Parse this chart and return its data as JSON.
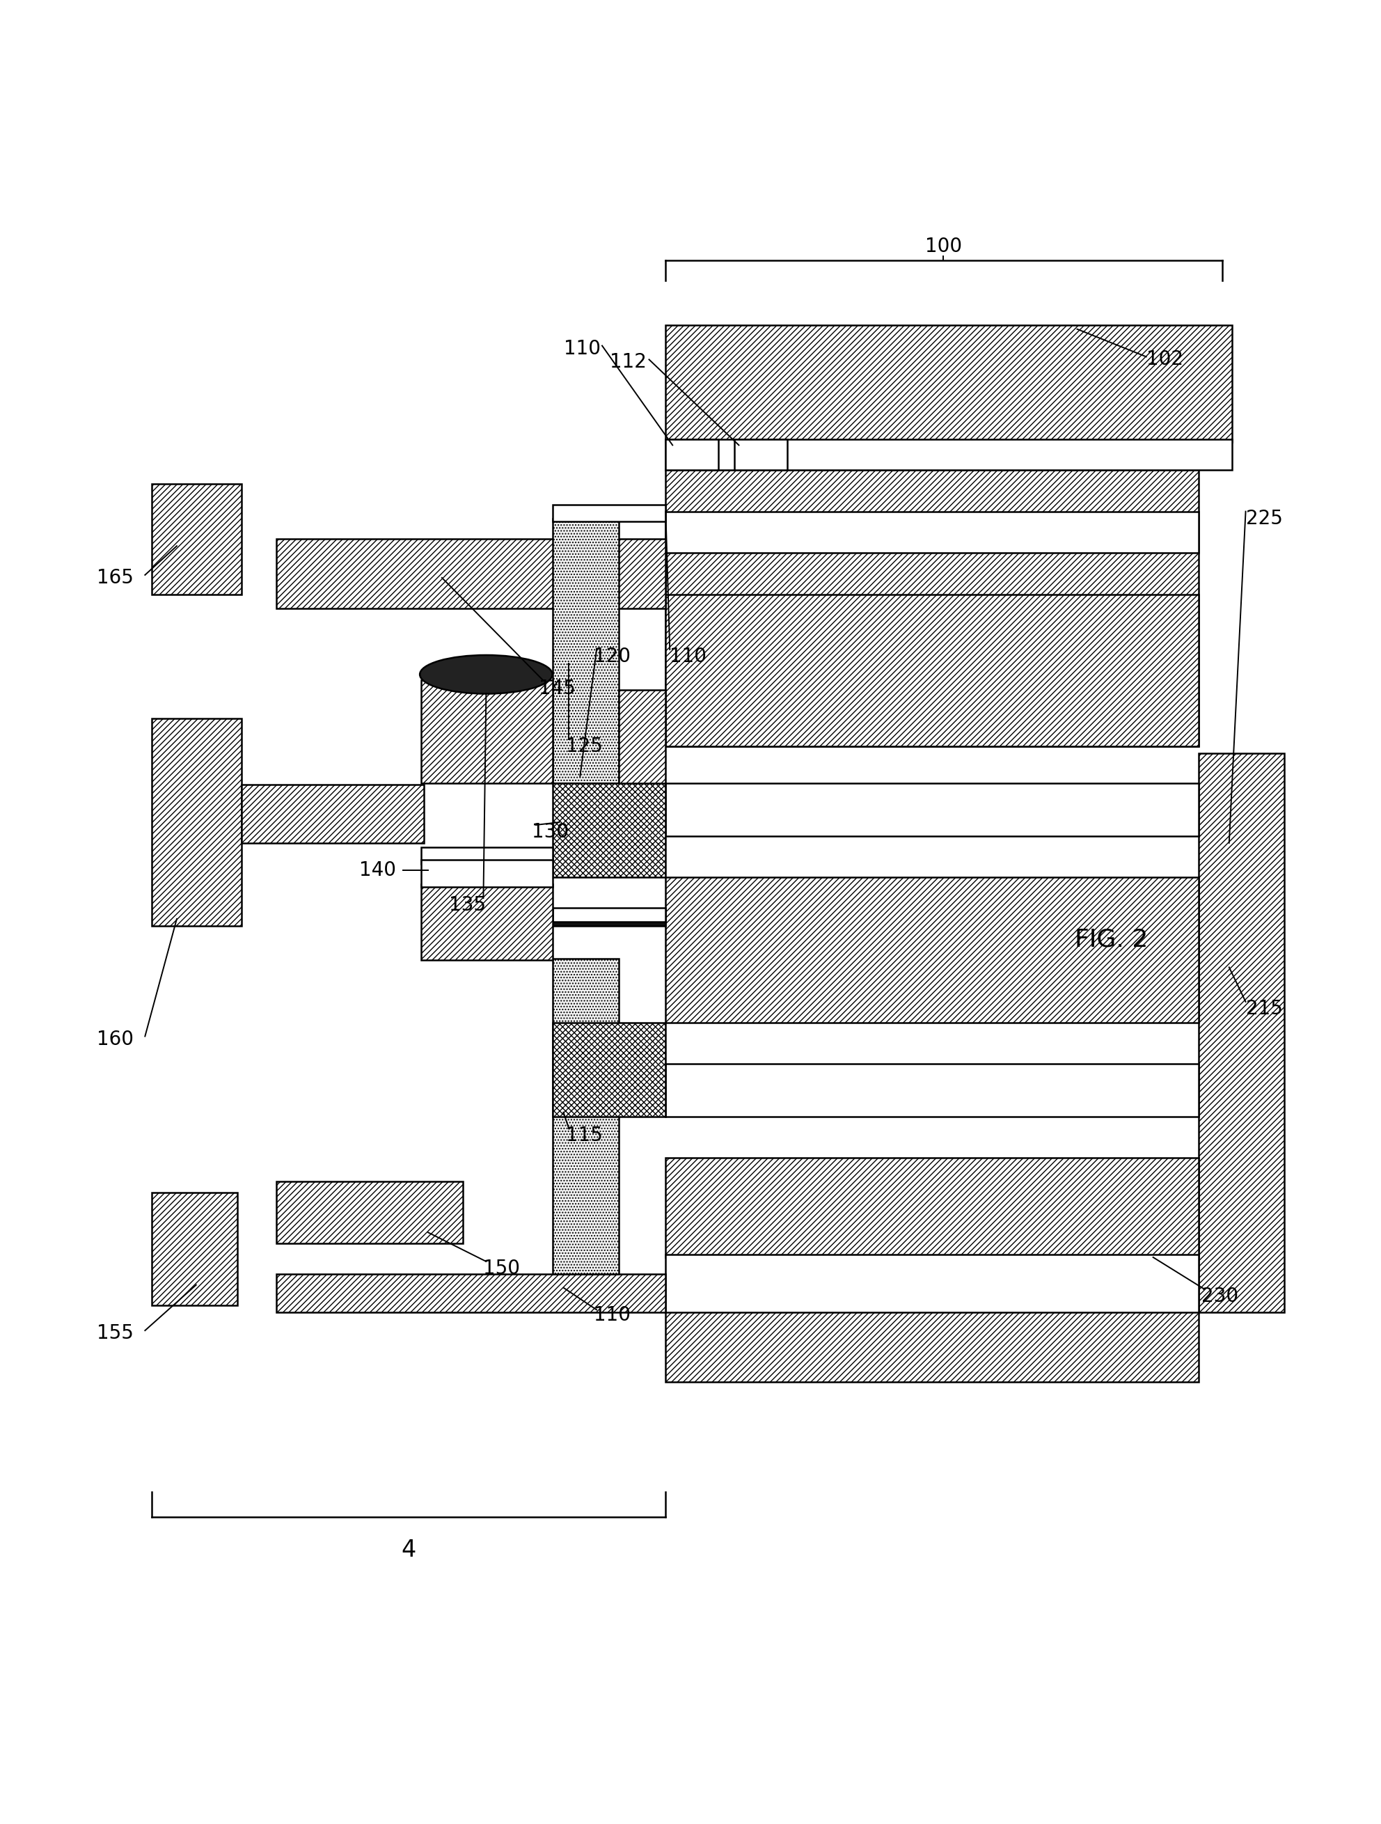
{
  "bg_color": "#ffffff",
  "fig_label": "FIG. 2",
  "label_100": "100",
  "label_4": "4",
  "ann_fs": 20,
  "fig_fs": 26,
  "lw": 1.8,
  "lw_ann": 1.4
}
